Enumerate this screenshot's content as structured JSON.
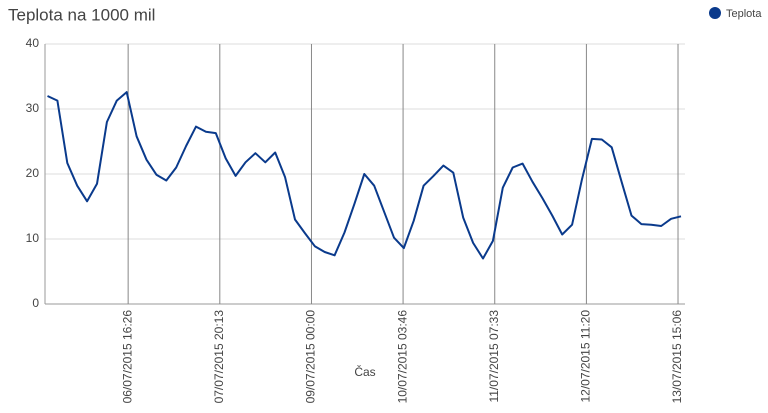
{
  "chart_data": {
    "type": "line",
    "title": "Teplota na 1000 mil",
    "xlabel": "Čas",
    "x": [
      "05/07/2015 16:00",
      "05/07/2015 19:00",
      "05/07/2015 22:00",
      "06/07/2015 01:00",
      "06/07/2015 04:00",
      "06/07/2015 07:00",
      "06/07/2015 10:00",
      "06/07/2015 13:00",
      "06/07/2015 16:00",
      "06/07/2015 19:00",
      "06/07/2015 22:00",
      "07/07/2015 01:00",
      "07/07/2015 04:00",
      "07/07/2015 07:00",
      "07/07/2015 10:00",
      "07/07/2015 13:00",
      "07/07/2015 16:00",
      "07/07/2015 19:00",
      "07/07/2015 22:00",
      "08/07/2015 01:00",
      "08/07/2015 04:00",
      "08/07/2015 07:00",
      "08/07/2015 10:00",
      "08/07/2015 13:00",
      "08/07/2015 16:00",
      "08/07/2015 19:00",
      "08/07/2015 22:00",
      "09/07/2015 01:00",
      "09/07/2015 04:00",
      "09/07/2015 07:00",
      "09/07/2015 10:00",
      "09/07/2015 13:00",
      "09/07/2015 16:00",
      "09/07/2015 19:00",
      "09/07/2015 22:00",
      "10/07/2015 01:00",
      "10/07/2015 04:00",
      "10/07/2015 07:00",
      "10/07/2015 10:00",
      "10/07/2015 13:00",
      "10/07/2015 16:00",
      "10/07/2015 19:00",
      "10/07/2015 22:00",
      "11/07/2015 01:00",
      "11/07/2015 04:00",
      "11/07/2015 07:00",
      "11/07/2015 10:00",
      "11/07/2015 13:00",
      "11/07/2015 16:00",
      "11/07/2015 19:00",
      "11/07/2015 22:00",
      "12/07/2015 01:00",
      "12/07/2015 04:00",
      "12/07/2015 07:00",
      "12/07/2015 10:00",
      "12/07/2015 13:00",
      "12/07/2015 16:00",
      "12/07/2015 19:00",
      "12/07/2015 22:00",
      "13/07/2015 01:00",
      "13/07/2015 04:00",
      "13/07/2015 07:00",
      "13/07/2015 10:00",
      "13/07/2015 13:00",
      "13/07/2015 16:00"
    ],
    "series": [
      {
        "name": "Teplota",
        "color": "#0a3a8c",
        "values": [
          32,
          31.3,
          21.7,
          18.2,
          15.8,
          18.5,
          28,
          31.3,
          32.6,
          25.8,
          22.2,
          19.9,
          19,
          21,
          24.3,
          27.3,
          26.5,
          26.3,
          22.4,
          19.7,
          21.8,
          23.2,
          21.8,
          23.3,
          19.5,
          13,
          10.9,
          8.9,
          8,
          7.5,
          11,
          15.4,
          20,
          18.2,
          14.2,
          10.2,
          8.6,
          12.8,
          18.2,
          19.7,
          21.3,
          20.2,
          13.3,
          9.4,
          7,
          9.7,
          17.9,
          21,
          21.6,
          18.8,
          16.3,
          13.6,
          10.7,
          12.2,
          19.2,
          25.4,
          25.3,
          24.1,
          18.8,
          13.6,
          12.3,
          12.2,
          12,
          13.1,
          13.5
        ]
      }
    ],
    "xlim": [
      "05/07/2015 15:14",
      "13/07/2015 17:13"
    ],
    "xticks": [
      "06/07/2015 16:26",
      "07/07/2015 20:13",
      "09/07/2015 00:00",
      "10/07/2015 03:46",
      "11/07/2015 07:33",
      "12/07/2015 11:20",
      "13/07/2015 15:06"
    ],
    "ylim": [
      0,
      40
    ],
    "yticks": [
      0,
      10,
      20,
      30,
      40
    ],
    "grid": true,
    "legend": "top-right"
  }
}
